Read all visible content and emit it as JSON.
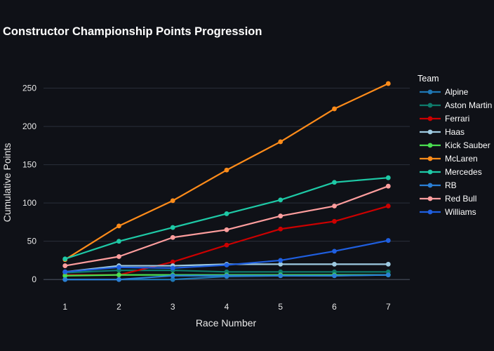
{
  "chart_data": {
    "type": "line",
    "title": "Constructor Championship Points Progression",
    "xlabel": "Race Number",
    "ylabel": "Cumulative Points",
    "x": [
      1,
      2,
      3,
      4,
      5,
      6,
      7
    ],
    "xlim": [
      0.6,
      7.4
    ],
    "ylim": [
      -20,
      290
    ],
    "yticks": [
      0,
      50,
      100,
      150,
      200,
      250
    ],
    "grid": true,
    "legend_title": "Team",
    "legend_position": "right",
    "series": [
      {
        "name": "Alpine",
        "color": "#1f77b4",
        "values": [
          0,
          0,
          0,
          4,
          5,
          5,
          6
        ]
      },
      {
        "name": "Aston Martin",
        "color": "#0e7c6b",
        "values": [
          9,
          12,
          12,
          10,
          10,
          10,
          10
        ]
      },
      {
        "name": "Ferrari",
        "color": "#cc0000",
        "values": [
          6,
          6,
          23,
          45,
          66,
          76,
          96
        ]
      },
      {
        "name": "Haas",
        "color": "#9ecae1",
        "values": [
          10,
          18,
          18,
          20,
          20,
          20,
          20
        ]
      },
      {
        "name": "Kick Sauber",
        "color": "#4ade50",
        "values": [
          5,
          6,
          6,
          6,
          6,
          6,
          6
        ]
      },
      {
        "name": "McLaren",
        "color": "#ff8c1a",
        "values": [
          26,
          70,
          103,
          143,
          180,
          223,
          256
        ]
      },
      {
        "name": "Mercedes",
        "color": "#1ec9a6",
        "values": [
          27,
          50,
          68,
          86,
          104,
          127,
          133
        ]
      },
      {
        "name": "RB",
        "color": "#2a7fd4",
        "values": [
          0,
          0,
          5,
          5,
          5,
          5,
          6
        ]
      },
      {
        "name": "Red Bull",
        "color": "#ff9e9e",
        "values": [
          18,
          30,
          55,
          65,
          83,
          96,
          122
        ]
      },
      {
        "name": "Williams",
        "color": "#1f5fe0",
        "values": [
          10,
          16,
          15,
          19,
          25,
          37,
          51
        ]
      }
    ]
  }
}
